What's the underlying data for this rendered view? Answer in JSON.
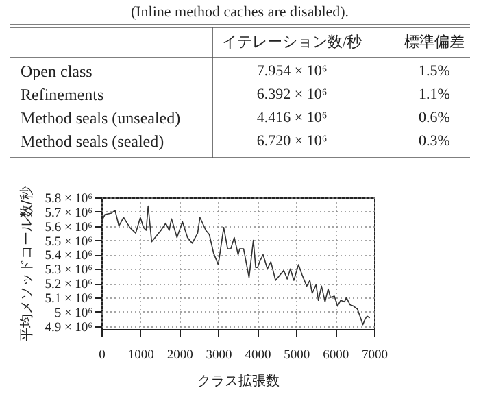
{
  "chart_data": [
    {
      "type": "other",
      "title": "(Inline method caches are disabled).",
      "categories": [
        "Open class",
        "Refinements",
        "Method seals (unsealed)",
        "Method seals (sealed)"
      ],
      "series": [
        {
          "name": "イテレーション数/秒",
          "values": [
            7954000,
            6392000,
            4416000,
            6720000
          ],
          "value_labels": [
            "7.954 × 10⁶",
            "6.392 × 10⁶",
            "4.416 × 10⁶",
            "6.720 × 10⁶"
          ]
        },
        {
          "name": "標準偏差",
          "values": [
            1.5,
            1.1,
            0.6,
            0.3
          ],
          "value_labels": [
            "1.5%",
            "1.1%",
            "0.6%",
            "0.3%"
          ]
        }
      ]
    },
    {
      "type": "line",
      "xlabel": "クラス拡張数",
      "ylabel": "平均メソッドコール数/秒",
      "grid": true,
      "line_style": "solid",
      "x": [
        0,
        90,
        260,
        350,
        450,
        570,
        730,
        880,
        1000,
        1080,
        1150,
        1200,
        1290,
        1530,
        1650,
        1740,
        1800,
        1940,
        2080,
        2210,
        2330,
        2470,
        2530,
        2680,
        2770,
        2880,
        3000,
        3140,
        3240,
        3320,
        3410,
        3510,
        3550,
        3650,
        3790,
        3900,
        3960,
        4010,
        4060,
        4150,
        4260,
        4350,
        4470,
        4590,
        4680,
        4770,
        4850,
        4940,
        5060,
        5150,
        5270,
        5350,
        5410,
        5510,
        5570,
        5650,
        5740,
        5820,
        5880,
        5980,
        6060,
        6140,
        6240,
        6290,
        6380,
        6470,
        6570,
        6650,
        6710,
        6770,
        6820,
        6880
      ],
      "series": [
        {
          "color": "#333333",
          "values": [
            5630000,
            5680000,
            5690000,
            5710000,
            5600000,
            5660000,
            5590000,
            5550000,
            5660000,
            5590000,
            5570000,
            5740000,
            5490000,
            5570000,
            5620000,
            5570000,
            5650000,
            5520000,
            5630000,
            5520000,
            5480000,
            5550000,
            5660000,
            5570000,
            5540000,
            5410000,
            5330000,
            5590000,
            5440000,
            5440000,
            5520000,
            5400000,
            5440000,
            5440000,
            5240000,
            5500000,
            5310000,
            5310000,
            5350000,
            5400000,
            5300000,
            5350000,
            5220000,
            5260000,
            5290000,
            5230000,
            5300000,
            5220000,
            5330000,
            5260000,
            5180000,
            5220000,
            5130000,
            5190000,
            5080000,
            5180000,
            5070000,
            5160000,
            5100000,
            5110000,
            5040000,
            5080000,
            5070000,
            5100000,
            5050000,
            5040000,
            5020000,
            4960000,
            4910000,
            4950000,
            4970000,
            4960000
          ]
        }
      ],
      "xlim": [
        0,
        7000
      ],
      "xticks": [
        0,
        1000,
        2000,
        3000,
        4000,
        5000,
        6000,
        7000
      ],
      "ylim": [
        4880000,
        5800000
      ],
      "yticks": [
        {
          "value": 4900000,
          "label": "4.9 × 10⁶"
        },
        {
          "value": 5000000,
          "label": "5 × 10⁶"
        },
        {
          "value": 5100000,
          "label": "5.1 × 10⁶"
        },
        {
          "value": 5200000,
          "label": "5.2 × 10⁶"
        },
        {
          "value": 5300000,
          "label": "5.3 × 10⁶"
        },
        {
          "value": 5400000,
          "label": "5.4 × 10⁶"
        },
        {
          "value": 5500000,
          "label": "5.5 × 10⁶"
        },
        {
          "value": 5600000,
          "label": "5.6 × 10⁶"
        },
        {
          "value": 5700000,
          "label": "5.7 × 10⁶"
        },
        {
          "value": 5800000,
          "label": "5.8 × 10⁶"
        }
      ]
    }
  ]
}
